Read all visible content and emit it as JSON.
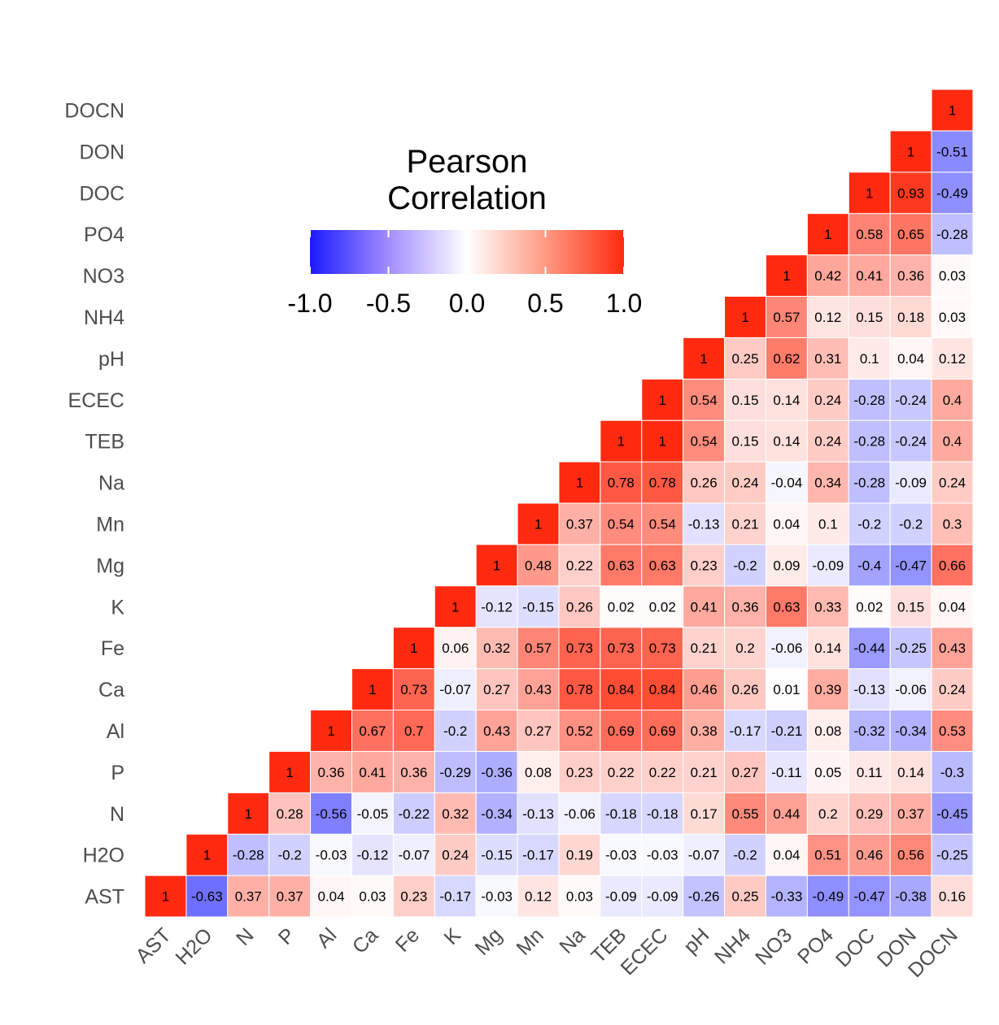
{
  "chart_data": {
    "type": "heatmap",
    "variables": [
      "AST",
      "H2O",
      "N",
      "P",
      "Al",
      "Ca",
      "Fe",
      "K",
      "Mg",
      "Mn",
      "Na",
      "TEB",
      "ECEC",
      "pH",
      "NH4",
      "NO3",
      "PO4",
      "DOC",
      "DON",
      "DOCN"
    ],
    "matrix_lower": [
      [
        1
      ],
      [
        -0.63,
        1
      ],
      [
        0.37,
        -0.28,
        1
      ],
      [
        0.37,
        -0.2,
        0.28,
        1
      ],
      [
        0.04,
        -0.03,
        -0.56,
        0.36,
        1
      ],
      [
        0.03,
        -0.12,
        -0.05,
        0.41,
        0.67,
        1
      ],
      [
        0.23,
        -0.07,
        -0.22,
        0.36,
        0.7,
        0.73,
        1
      ],
      [
        -0.17,
        0.24,
        0.32,
        -0.29,
        -0.2,
        -0.07,
        0.06,
        1
      ],
      [
        -0.03,
        -0.15,
        -0.34,
        -0.36,
        0.43,
        0.27,
        0.32,
        -0.12,
        1
      ],
      [
        0.12,
        -0.17,
        -0.13,
        0.08,
        0.27,
        0.43,
        0.57,
        -0.15,
        0.48,
        1
      ],
      [
        0.03,
        0.19,
        -0.06,
        0.23,
        0.52,
        0.78,
        0.73,
        0.26,
        0.22,
        0.37,
        1
      ],
      [
        -0.09,
        -0.03,
        -0.18,
        0.22,
        0.69,
        0.84,
        0.73,
        0.02,
        0.63,
        0.54,
        0.78,
        1
      ],
      [
        -0.09,
        -0.03,
        -0.18,
        0.22,
        0.69,
        0.84,
        0.73,
        0.02,
        0.63,
        0.54,
        0.78,
        1,
        1
      ],
      [
        -0.26,
        -0.07,
        0.17,
        0.21,
        0.38,
        0.46,
        0.21,
        0.41,
        0.23,
        -0.13,
        0.26,
        0.54,
        0.54,
        1
      ],
      [
        0.25,
        -0.2,
        0.55,
        0.27,
        -0.17,
        0.26,
        0.2,
        0.36,
        -0.2,
        0.21,
        0.24,
        0.15,
        0.15,
        0.25,
        1
      ],
      [
        -0.33,
        0.04,
        0.44,
        -0.11,
        -0.21,
        0.01,
        -0.06,
        0.63,
        0.09,
        0.04,
        -0.04,
        0.14,
        0.14,
        0.62,
        0.57,
        1
      ],
      [
        -0.49,
        0.51,
        0.2,
        0.05,
        0.08,
        0.39,
        0.14,
        0.33,
        -0.09,
        0.1,
        0.34,
        0.24,
        0.24,
        0.31,
        0.12,
        0.42,
        1
      ],
      [
        -0.47,
        0.46,
        0.29,
        0.11,
        -0.32,
        -0.13,
        -0.44,
        0.02,
        -0.4,
        -0.2,
        -0.28,
        -0.28,
        -0.28,
        0.1,
        0.15,
        0.41,
        0.58,
        1
      ],
      [
        -0.38,
        0.56,
        0.37,
        0.14,
        -0.34,
        -0.06,
        -0.25,
        0.15,
        -0.47,
        -0.2,
        -0.09,
        -0.24,
        -0.24,
        0.04,
        0.18,
        0.36,
        0.65,
        0.93,
        1
      ],
      [
        0.16,
        -0.25,
        -0.45,
        -0.3,
        0.53,
        0.24,
        0.43,
        0.04,
        0.66,
        0.3,
        0.24,
        0.4,
        0.4,
        0.12,
        0.03,
        0.03,
        -0.28,
        -0.49,
        -0.51,
        1
      ]
    ],
    "legend": {
      "title_line1": "Pearson",
      "title_line2": "Correlation",
      "ticks": [
        "-1.0",
        "-0.5",
        "0.0",
        "0.5",
        "1.0"
      ],
      "limits": [
        -1,
        1
      ]
    },
    "colors": {
      "low": "#1a1aff",
      "mid": "#ffffff",
      "high": "#ff2a0f",
      "grid": "#ffffff"
    }
  }
}
